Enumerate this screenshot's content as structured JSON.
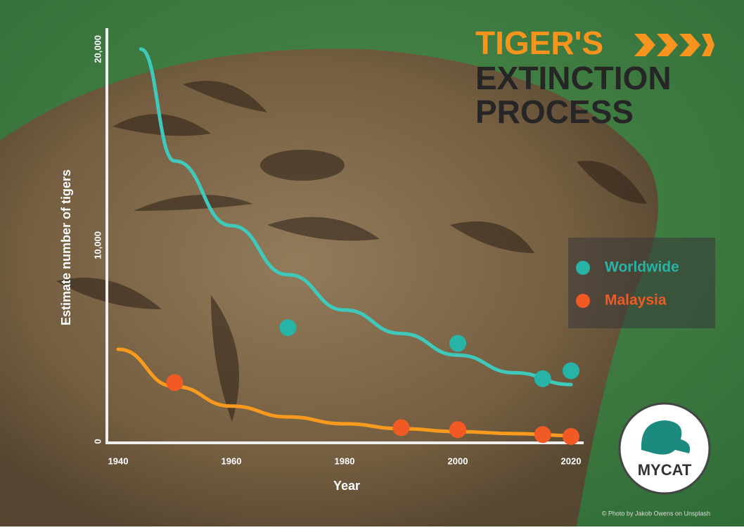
{
  "chart_data": {
    "type": "scatter",
    "title": [
      "TIGER'S",
      "EXTINCTION",
      "PROCESS"
    ],
    "x_label": "Year",
    "y_label": "Estimate number of tigers",
    "xlim": [
      1940,
      2020
    ],
    "xticks": [
      1940,
      1960,
      1980,
      2000,
      2020
    ],
    "ylim": [
      0,
      21000
    ],
    "yticks": [
      0,
      {
        "value": 10000,
        "label": "10,000"
      },
      {
        "value": 20000,
        "label": "20,000"
      }
    ],
    "series": [
      {
        "name": "Worldwide",
        "color": "#27b3a5",
        "curve_color": "#3fc9bb",
        "x": [
          1970,
          2000,
          2015,
          2020
        ],
        "values": [
          5800,
          5000,
          3200,
          3600
        ],
        "curve": {
          "x": [
            1944,
            1950,
            1960,
            1970,
            1980,
            1990,
            2000,
            2010,
            2020
          ],
          "values": [
            20000,
            14300,
            11000,
            8500,
            6700,
            5500,
            4400,
            3500,
            2900
          ]
        }
      },
      {
        "name": "Malaysia",
        "color": "#f15a24",
        "curve_color": "#f79a1d",
        "x": [
          1950,
          1990,
          2000,
          2015,
          2020
        ],
        "values": [
          3000,
          700,
          600,
          350,
          250
        ],
        "curve": {
          "x": [
            1940,
            1950,
            1960,
            1970,
            1980,
            1990,
            2000,
            2010,
            2020
          ],
          "values": [
            4700,
            2800,
            1800,
            1250,
            900,
            650,
            500,
            400,
            300
          ]
        }
      }
    ],
    "legend": "right",
    "logo": "MYCAT",
    "credit": "© Photo by Jakob Owens on Unsplash"
  }
}
